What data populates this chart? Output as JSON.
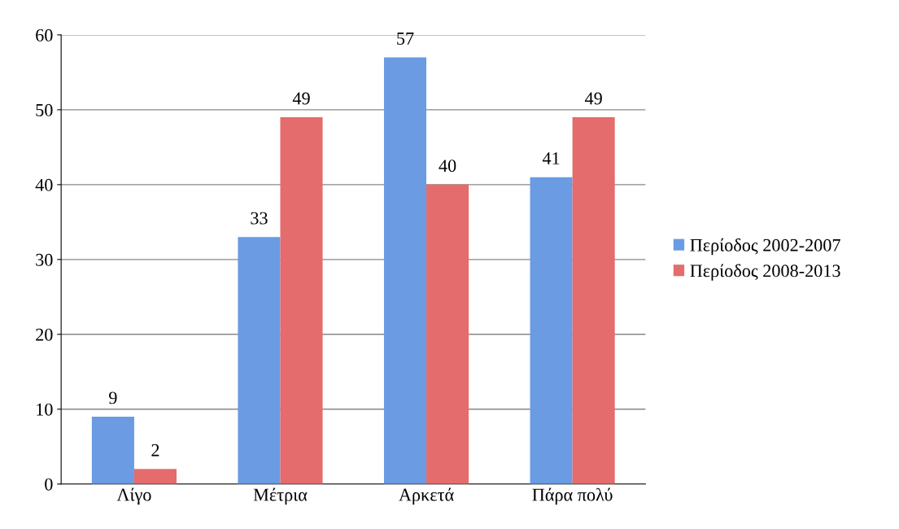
{
  "chart_data": {
    "type": "bar",
    "categories": [
      "Λίγο",
      "Μέτρια",
      "Αρκετά",
      "Πάρα πολύ"
    ],
    "series": [
      {
        "name": "Περίοδος 2002-2007",
        "color": "#6a9be3",
        "values": [
          9,
          33,
          57,
          41
        ]
      },
      {
        "name": "Περίοδος 2008-2013",
        "color": "#e46c6c",
        "values": [
          2,
          49,
          40,
          49
        ]
      }
    ],
    "ylim": [
      0,
      60
    ],
    "yticks": [
      0,
      10,
      20,
      30,
      40,
      50,
      60
    ],
    "grid": "y",
    "legend": "right",
    "data_labels": true
  }
}
